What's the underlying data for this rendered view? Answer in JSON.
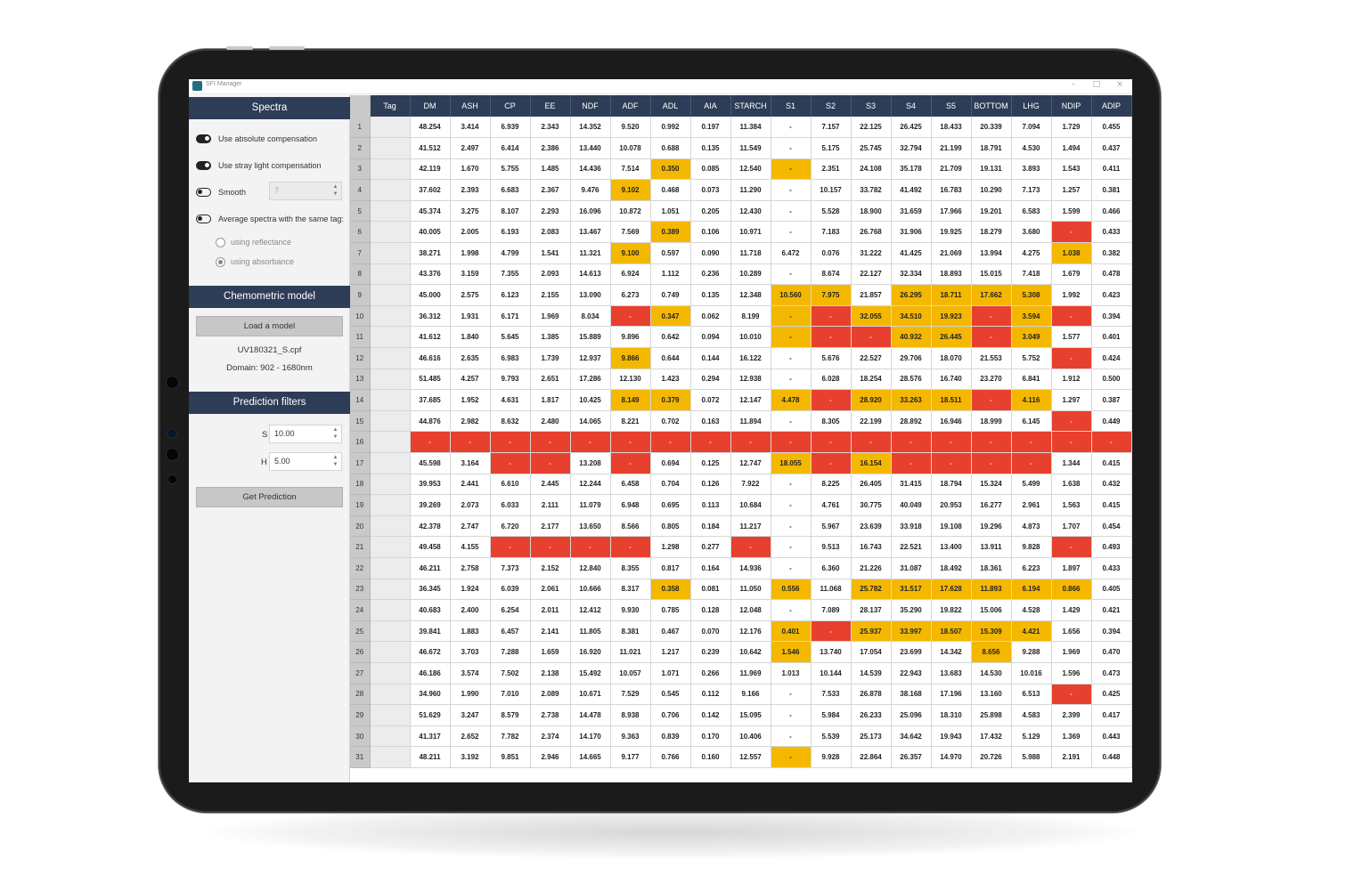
{
  "window": {
    "title": "SFI Manager"
  },
  "sidebar": {
    "spectra": {
      "title": "Spectra",
      "abs_comp": "Use absolute compensation",
      "stray": "Use stray light compensation",
      "smooth": "Smooth",
      "smooth_value": "7",
      "avg": "Average spectra with the same tag:",
      "reflectance": "using reflectance",
      "absorbance": "using absorbance"
    },
    "model": {
      "title": "Chemometric model",
      "load_label": "Load a model",
      "file": "UV180321_S.cpf",
      "domain": "Domain: 902 - 1680nm"
    },
    "filters": {
      "title": "Prediction filters",
      "s_label": "S",
      "s_value": "10.00",
      "h_label": "H",
      "h_value": "5.00",
      "predict_label": "Get Prediction"
    }
  },
  "colors": {
    "header": "#2e3d57",
    "warning": "#f5b800",
    "error": "#e8402e"
  },
  "grid": {
    "columns": [
      "Tag",
      "DM",
      "ASH",
      "CP",
      "EE",
      "NDF",
      "ADF",
      "ADL",
      "AIA",
      "STARCH",
      "S1",
      "S2",
      "S3",
      "S4",
      "S5",
      "BOTTOM",
      "LHG",
      "NDIP",
      "ADIP"
    ],
    "rows": [
      {
        "n": "1",
        "cells": [
          "",
          "48.254",
          "3.414",
          "6.939",
          "2.343",
          "14.352",
          "9.520",
          "0.992",
          "0.197",
          "11.384",
          "-",
          "7.157",
          "22.125",
          "26.425",
          "18.433",
          "20.339",
          "7.094",
          "1.729",
          "0.455"
        ],
        "flags": {}
      },
      {
        "n": "2",
        "cells": [
          "",
          "41.512",
          "2.497",
          "6.414",
          "2.386",
          "13.440",
          "10.078",
          "0.688",
          "0.135",
          "11.549",
          "-",
          "5.175",
          "25.745",
          "32.794",
          "21.199",
          "18.791",
          "4.530",
          "1.494",
          "0.437"
        ],
        "flags": {}
      },
      {
        "n": "3",
        "cells": [
          "",
          "42.119",
          "1.670",
          "5.755",
          "1.485",
          "14.436",
          "7.514",
          "0.350",
          "0.085",
          "12.540",
          "-",
          "2.351",
          "24.108",
          "35.178",
          "21.709",
          "19.131",
          "3.893",
          "1.543",
          "0.411"
        ],
        "flags": {
          "7": "y",
          "10": "y"
        }
      },
      {
        "n": "4",
        "cells": [
          "",
          "37.602",
          "2.393",
          "6.683",
          "2.367",
          "9.476",
          "9.102",
          "0.468",
          "0.073",
          "11.290",
          "-",
          "10.157",
          "33.782",
          "41.492",
          "16.783",
          "10.290",
          "7.173",
          "1.257",
          "0.381"
        ],
        "flags": {
          "6": "y"
        }
      },
      {
        "n": "5",
        "cells": [
          "",
          "45.374",
          "3.275",
          "8.107",
          "2.293",
          "16.096",
          "10.872",
          "1.051",
          "0.205",
          "12.430",
          "-",
          "5.528",
          "18.900",
          "31.659",
          "17.966",
          "19.201",
          "6.583",
          "1.599",
          "0.466"
        ],
        "flags": {}
      },
      {
        "n": "6",
        "cells": [
          "",
          "40.005",
          "2.005",
          "6.193",
          "2.083",
          "13.467",
          "7.569",
          "0.389",
          "0.106",
          "10.971",
          "-",
          "7.183",
          "26.768",
          "31.906",
          "19.925",
          "18.279",
          "3.680",
          "-",
          "0.433"
        ],
        "flags": {
          "7": "y",
          "17": "r"
        }
      },
      {
        "n": "7",
        "cells": [
          "",
          "38.271",
          "1.998",
          "4.799",
          "1.541",
          "11.321",
          "9.100",
          "0.597",
          "0.090",
          "11.718",
          "6.472",
          "0.076",
          "31.222",
          "41.425",
          "21.069",
          "13.994",
          "4.275",
          "1.038",
          "0.382"
        ],
        "flags": {
          "6": "y",
          "17": "y"
        }
      },
      {
        "n": "8",
        "cells": [
          "",
          "43.376",
          "3.159",
          "7.355",
          "2.093",
          "14.613",
          "6.924",
          "1.112",
          "0.236",
          "10.289",
          "-",
          "8.674",
          "22.127",
          "32.334",
          "18.893",
          "15.015",
          "7.418",
          "1.679",
          "0.478"
        ],
        "flags": {}
      },
      {
        "n": "9",
        "cells": [
          "",
          "45.000",
          "2.575",
          "6.123",
          "2.155",
          "13.090",
          "6.273",
          "0.749",
          "0.135",
          "12.348",
          "10.560",
          "7.975",
          "21.857",
          "26.295",
          "18.711",
          "17.662",
          "5.308",
          "1.992",
          "0.423"
        ],
        "flags": {
          "10": "y",
          "11": "y",
          "13": "y",
          "14": "y",
          "15": "y",
          "16": "y"
        }
      },
      {
        "n": "10",
        "cells": [
          "",
          "36.312",
          "1.931",
          "6.171",
          "1.969",
          "8.034",
          "-",
          "0.347",
          "0.062",
          "8.199",
          "-",
          "-",
          "32.055",
          "34.510",
          "19.923",
          "-",
          "3.594",
          "-",
          "0.394"
        ],
        "flags": {
          "6": "r",
          "7": "y",
          "10": "y",
          "11": "r",
          "12": "y",
          "13": "y",
          "14": "y",
          "15": "r",
          "16": "y",
          "17": "r"
        }
      },
      {
        "n": "11",
        "cells": [
          "",
          "41.612",
          "1.840",
          "5.645",
          "1.385",
          "15.889",
          "9.896",
          "0.642",
          "0.094",
          "10.010",
          "-",
          "-",
          "-",
          "40.932",
          "26.445",
          "-",
          "3.049",
          "1.577",
          "0.401"
        ],
        "flags": {
          "10": "y",
          "11": "r",
          "12": "r",
          "13": "y",
          "14": "y",
          "15": "r",
          "16": "y"
        }
      },
      {
        "n": "12",
        "cells": [
          "",
          "46.616",
          "2.635",
          "6.983",
          "1.739",
          "12.937",
          "9.866",
          "0.644",
          "0.144",
          "16.122",
          "-",
          "5.676",
          "22.527",
          "29.706",
          "18.070",
          "21.553",
          "5.752",
          "-",
          "0.424"
        ],
        "flags": {
          "6": "y",
          "17": "r"
        }
      },
      {
        "n": "13",
        "cells": [
          "",
          "51.485",
          "4.257",
          "9.793",
          "2.651",
          "17.286",
          "12.130",
          "1.423",
          "0.294",
          "12.938",
          "-",
          "6.028",
          "18.254",
          "28.576",
          "16.740",
          "23.270",
          "6.841",
          "1.912",
          "0.500"
        ],
        "flags": {}
      },
      {
        "n": "14",
        "cells": [
          "",
          "37.685",
          "1.952",
          "4.631",
          "1.817",
          "10.425",
          "8.149",
          "0.379",
          "0.072",
          "12.147",
          "4.478",
          "-",
          "28.920",
          "33.263",
          "18.511",
          "-",
          "4.116",
          "1.297",
          "0.387"
        ],
        "flags": {
          "6": "y",
          "7": "y",
          "10": "y",
          "11": "r",
          "12": "y",
          "13": "y",
          "14": "y",
          "15": "r",
          "16": "y"
        }
      },
      {
        "n": "15",
        "cells": [
          "",
          "44.876",
          "2.982",
          "8.632",
          "2.480",
          "14.065",
          "8.221",
          "0.702",
          "0.163",
          "11.894",
          "-",
          "8.305",
          "22.199",
          "28.892",
          "16.946",
          "18.999",
          "6.145",
          "-",
          "0.449"
        ],
        "flags": {
          "17": "r"
        }
      },
      {
        "n": "16",
        "cells": [
          "",
          "-",
          "-",
          "-",
          "-",
          "-",
          "-",
          "-",
          "-",
          "-",
          "-",
          "-",
          "-",
          "-",
          "-",
          "-",
          "-",
          "-",
          "-"
        ],
        "flags": {
          "1": "r",
          "2": "r",
          "3": "r",
          "4": "r",
          "5": "r",
          "6": "r",
          "7": "r",
          "8": "r",
          "9": "r",
          "10": "r",
          "11": "r",
          "12": "r",
          "13": "r",
          "14": "r",
          "15": "r",
          "16": "r",
          "17": "r",
          "18": "r"
        }
      },
      {
        "n": "17",
        "cells": [
          "",
          "45.598",
          "3.164",
          "-",
          "-",
          "13.208",
          "-",
          "0.694",
          "0.125",
          "12.747",
          "18.055",
          "-",
          "16.154",
          "-",
          "-",
          "-",
          "-",
          "1.344",
          "0.415"
        ],
        "flags": {
          "3": "r",
          "4": "r",
          "6": "r",
          "10": "y",
          "11": "r",
          "12": "y",
          "13": "r",
          "14": "r",
          "15": "r",
          "16": "r"
        }
      },
      {
        "n": "18",
        "cells": [
          "",
          "39.953",
          "2.441",
          "6.610",
          "2.445",
          "12.244",
          "6.458",
          "0.704",
          "0.126",
          "7.922",
          "-",
          "8.225",
          "26.405",
          "31.415",
          "18.794",
          "15.324",
          "5.499",
          "1.638",
          "0.432"
        ],
        "flags": {}
      },
      {
        "n": "19",
        "cells": [
          "",
          "39.269",
          "2.073",
          "6.033",
          "2.111",
          "11.079",
          "6.948",
          "0.695",
          "0.113",
          "10.684",
          "-",
          "4.761",
          "30.775",
          "40.049",
          "20.953",
          "16.277",
          "2.961",
          "1.563",
          "0.415"
        ],
        "flags": {}
      },
      {
        "n": "20",
        "cells": [
          "",
          "42.378",
          "2.747",
          "6.720",
          "2.177",
          "13.650",
          "8.566",
          "0.805",
          "0.184",
          "11.217",
          "-",
          "5.967",
          "23.639",
          "33.918",
          "19.108",
          "19.296",
          "4.873",
          "1.707",
          "0.454"
        ],
        "flags": {}
      },
      {
        "n": "21",
        "cells": [
          "",
          "49.458",
          "4.155",
          "-",
          "-",
          "-",
          "-",
          "1.298",
          "0.277",
          "-",
          "-",
          "9.513",
          "16.743",
          "22.521",
          "13.400",
          "13.911",
          "9.828",
          "-",
          "0.493"
        ],
        "flags": {
          "3": "r",
          "4": "r",
          "5": "r",
          "6": "r",
          "9": "r",
          "17": "r"
        }
      },
      {
        "n": "22",
        "cells": [
          "",
          "46.211",
          "2.758",
          "7.373",
          "2.152",
          "12.840",
          "8.355",
          "0.817",
          "0.164",
          "14.936",
          "-",
          "6.360",
          "21.226",
          "31.087",
          "18.492",
          "18.361",
          "6.223",
          "1.897",
          "0.433"
        ],
        "flags": {}
      },
      {
        "n": "23",
        "cells": [
          "",
          "36.345",
          "1.924",
          "6.039",
          "2.061",
          "10.666",
          "8.317",
          "0.358",
          "0.081",
          "11.050",
          "0.556",
          "11.068",
          "25.782",
          "31.517",
          "17.628",
          "11.893",
          "6.194",
          "0.866",
          "0.405"
        ],
        "flags": {
          "7": "y",
          "10": "y",
          "12": "y",
          "13": "y",
          "14": "y",
          "15": "y",
          "16": "y",
          "17": "y"
        }
      },
      {
        "n": "24",
        "cells": [
          "",
          "40.683",
          "2.400",
          "6.254",
          "2.011",
          "12.412",
          "9.930",
          "0.785",
          "0.128",
          "12.048",
          "-",
          "7.089",
          "28.137",
          "35.290",
          "19.822",
          "15.006",
          "4.528",
          "1.429",
          "0.421"
        ],
        "flags": {}
      },
      {
        "n": "25",
        "cells": [
          "",
          "39.841",
          "1.883",
          "6.457",
          "2.141",
          "11.805",
          "8.381",
          "0.467",
          "0.070",
          "12.176",
          "0.401",
          "-",
          "25.937",
          "33.997",
          "18.507",
          "15.309",
          "4.421",
          "1.656",
          "0.394"
        ],
        "flags": {
          "10": "y",
          "11": "r",
          "12": "y",
          "13": "y",
          "14": "y",
          "15": "y",
          "16": "y"
        }
      },
      {
        "n": "26",
        "cells": [
          "",
          "46.672",
          "3.703",
          "7.288",
          "1.659",
          "16.920",
          "11.021",
          "1.217",
          "0.239",
          "10.642",
          "1.546",
          "13.740",
          "17.054",
          "23.699",
          "14.342",
          "8.656",
          "9.288",
          "1.969",
          "0.470"
        ],
        "flags": {
          "10": "y",
          "15": "y"
        }
      },
      {
        "n": "27",
        "cells": [
          "",
          "46.186",
          "3.574",
          "7.502",
          "2.138",
          "15.492",
          "10.057",
          "1.071",
          "0.266",
          "11.969",
          "1.013",
          "10.144",
          "14.539",
          "22.943",
          "13.683",
          "14.530",
          "10.016",
          "1.596",
          "0.473"
        ],
        "flags": {}
      },
      {
        "n": "28",
        "cells": [
          "",
          "34.960",
          "1.990",
          "7.010",
          "2.089",
          "10.671",
          "7.529",
          "0.545",
          "0.112",
          "9.166",
          "-",
          "7.533",
          "26.878",
          "38.168",
          "17.196",
          "13.160",
          "6.513",
          "-",
          "0.425"
        ],
        "flags": {
          "17": "r"
        }
      },
      {
        "n": "29",
        "cells": [
          "",
          "51.629",
          "3.247",
          "8.579",
          "2.738",
          "14.478",
          "8.938",
          "0.706",
          "0.142",
          "15.095",
          "-",
          "5.984",
          "26.233",
          "25.096",
          "18.310",
          "25.898",
          "4.583",
          "2.399",
          "0.417"
        ],
        "flags": {}
      },
      {
        "n": "30",
        "cells": [
          "",
          "41.317",
          "2.652",
          "7.782",
          "2.374",
          "14.170",
          "9.363",
          "0.839",
          "0.170",
          "10.406",
          "-",
          "5.539",
          "25.173",
          "34.642",
          "19.943",
          "17.432",
          "5.129",
          "1.369",
          "0.443"
        ],
        "flags": {}
      },
      {
        "n": "31",
        "cells": [
          "",
          "48.211",
          "3.192",
          "9.851",
          "2.946",
          "14.665",
          "9.177",
          "0.766",
          "0.160",
          "12.557",
          "-",
          "9.928",
          "22.864",
          "26.357",
          "14.970",
          "20.726",
          "5.988",
          "2.191",
          "0.448"
        ],
        "flags": {
          "10": "y"
        }
      }
    ]
  }
}
